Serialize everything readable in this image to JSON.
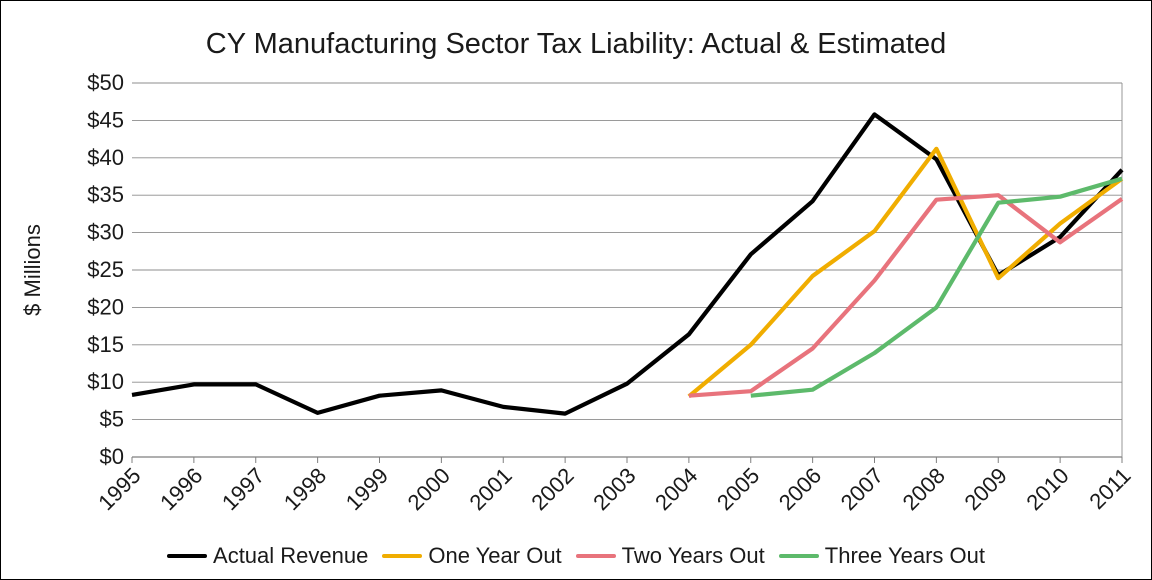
{
  "chart_data": {
    "type": "line",
    "title": "CY Manufacturing Sector Tax  Liability: Actual & Estimated",
    "xlabel": "",
    "ylabel": "$ Millions",
    "x": [
      "1995",
      "1996",
      "1997",
      "1998",
      "1999",
      "2000",
      "2001",
      "2002",
      "2003",
      "2004",
      "2005",
      "2006",
      "2007",
      "2008",
      "2009",
      "2010",
      "2011"
    ],
    "ylim": [
      0,
      50
    ],
    "yticks": [
      0,
      5,
      10,
      15,
      20,
      25,
      30,
      35,
      40,
      45,
      50
    ],
    "ytick_labels": [
      "$0",
      "$5",
      "$10",
      "$15",
      "$20",
      "$25",
      "$30",
      "$35",
      "$40",
      "$45",
      "$50"
    ],
    "grid": true,
    "legend_position": "bottom",
    "series": [
      {
        "name": "Actual Revenue",
        "color": "#000000",
        "values": [
          8.3,
          9.7,
          9.7,
          5.9,
          8.2,
          8.9,
          6.7,
          5.8,
          9.8,
          16.4,
          27.1,
          34.2,
          45.8,
          39.8,
          24.3,
          29.4,
          38.4
        ]
      },
      {
        "name": "One Year Out",
        "color": "#f0ad00",
        "values": [
          null,
          null,
          null,
          null,
          null,
          null,
          null,
          null,
          null,
          8.1,
          15.0,
          24.2,
          30.2,
          41.2,
          23.9,
          31.2,
          37.2
        ]
      },
      {
        "name": "Two Years Out",
        "color": "#e8737c",
        "values": [
          null,
          null,
          null,
          null,
          null,
          null,
          null,
          null,
          null,
          8.2,
          8.8,
          14.5,
          23.6,
          34.4,
          35.0,
          28.7,
          34.5
        ]
      },
      {
        "name": "Three Years Out",
        "color": "#5dba6b",
        "values": [
          null,
          null,
          null,
          null,
          null,
          null,
          null,
          null,
          null,
          null,
          8.2,
          9.0,
          13.9,
          20.0,
          34.0,
          34.8,
          37.2
        ]
      }
    ]
  }
}
